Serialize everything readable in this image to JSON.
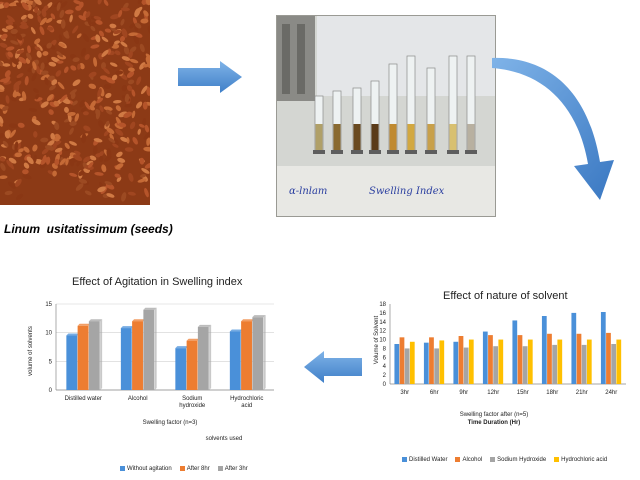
{
  "seed_caption": "Linum  usitatissimum (seeds)",
  "photo": {
    "label_left": "ɑ-lnlam",
    "label_right": "Swelling Index"
  },
  "chart_data": [
    {
      "type": "bar",
      "title": "Effect of Agitation in Swelling index",
      "categories": [
        "Distilled water",
        "Alcohol",
        "Sodium hydroxide",
        "Hydrochloric acid"
      ],
      "categories_display": [
        [
          "Distilled water"
        ],
        [
          "Alcohol"
        ],
        [
          "Sodium",
          "hydroxide"
        ],
        [
          "Hydrochloric",
          "acid"
        ]
      ],
      "series": [
        {
          "name": "Without agitation",
          "color": "#4a90d9",
          "values": [
            9.5,
            10.8,
            7.3,
            10.2
          ]
        },
        {
          "name": "After 8hr",
          "color": "#ed7d31",
          "values": [
            11.2,
            12.0,
            8.6,
            12.0
          ]
        },
        {
          "name": "After 3hr",
          "color": "#a5a5a5",
          "values": [
            12.0,
            14.0,
            11.0,
            12.7
          ]
        }
      ],
      "xlabel": "Swelling factor (n=3)",
      "xlabel2": "solvents used",
      "ylabel": "volume of solvents",
      "ylim": [
        0,
        15
      ],
      "yticks": [
        0,
        5,
        10,
        15
      ],
      "grid": true,
      "legend": "bottom"
    },
    {
      "type": "bar",
      "title": "Effect of nature of solvent",
      "categories": [
        "3hr",
        "6hr",
        "9hr",
        "12hr",
        "15hr",
        "18hr",
        "21hr",
        "24hr"
      ],
      "series": [
        {
          "name": "Distilled Water",
          "color": "#4a90d9",
          "values": [
            9.0,
            9.3,
            9.5,
            11.8,
            14.3,
            15.3,
            16.0,
            16.2
          ]
        },
        {
          "name": "Alcohol",
          "color": "#ed7d31",
          "values": [
            10.5,
            10.5,
            10.8,
            11.0,
            11.0,
            11.3,
            11.3,
            11.5
          ]
        },
        {
          "name": "Sodium Hydroxide",
          "color": "#a5a5a5",
          "values": [
            8.0,
            8.0,
            8.2,
            8.5,
            8.5,
            8.8,
            8.8,
            9.0
          ]
        },
        {
          "name": "Hydrochloric acid",
          "color": "#ffc000",
          "values": [
            9.5,
            9.8,
            10.0,
            10.0,
            10.0,
            10.0,
            10.0,
            10.0
          ]
        }
      ],
      "xlabel": "Swelling factor after (n=5)",
      "xlabel2": "Time Duration (Hr)",
      "ylabel": "Volume of Solvent",
      "ylim": [
        0,
        18
      ],
      "yticks": [
        0,
        2,
        4,
        6,
        8,
        10,
        12,
        14,
        16,
        18
      ],
      "grid": false,
      "legend": "bottom"
    }
  ]
}
